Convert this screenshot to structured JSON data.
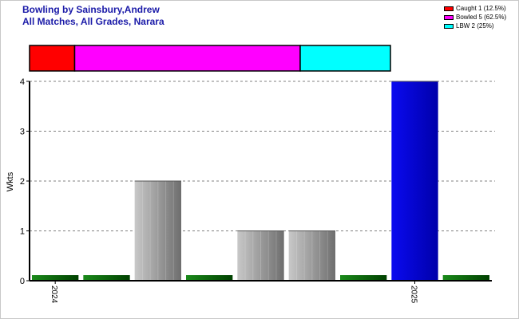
{
  "title": "Bowling by Sainsbury,Andrew",
  "subtitle": "All Matches, All Grades, Narara",
  "legend": [
    {
      "label": "Caught 1 (12.5%)",
      "color": "#ff0000"
    },
    {
      "label": "Bowled 5 (62.5%)",
      "color": "#ff00ff"
    },
    {
      "label": "LBW 2 (25%)",
      "color": "#00ffff"
    }
  ],
  "chart_data": [
    {
      "type": "bar",
      "title": "Bowling by Sainsbury,Andrew",
      "ylabel": "Wkts",
      "ylim": [
        0,
        4
      ],
      "yticks": [
        "0",
        "1",
        "2",
        "3",
        "4"
      ],
      "grid": true,
      "legend_position": "top-right",
      "values": [
        0,
        0,
        2,
        0,
        1,
        1,
        0,
        4,
        0
      ],
      "bar_kind": [
        "zero",
        "zero",
        "normal",
        "zero",
        "normal",
        "normal",
        "zero",
        "highlight",
        "zero"
      ],
      "tick_labels": [
        {
          "index": 0,
          "label": "2024"
        },
        {
          "index": 7,
          "label": "2025"
        }
      ],
      "colors": {
        "zero": "#006400",
        "normal": "#a0a0a0",
        "highlight": "#0000dd"
      }
    },
    {
      "type": "bar",
      "orientation": "horizontal-stacked",
      "categories": [
        "Caught",
        "Bowled",
        "LBW"
      ],
      "values": [
        1,
        5,
        2
      ],
      "percent": [
        12.5,
        62.5,
        25
      ],
      "colors": [
        "#ff0000",
        "#ff00ff",
        "#00ffff"
      ]
    }
  ]
}
